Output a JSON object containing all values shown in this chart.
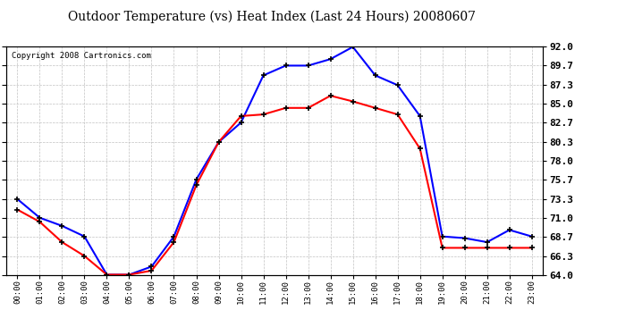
{
  "title": "Outdoor Temperature (vs) Heat Index (Last 24 Hours) 20080607",
  "copyright": "Copyright 2008 Cartronics.com",
  "x_labels": [
    "00:00",
    "01:00",
    "02:00",
    "03:00",
    "04:00",
    "05:00",
    "06:00",
    "07:00",
    "08:00",
    "09:00",
    "10:00",
    "11:00",
    "12:00",
    "13:00",
    "14:00",
    "15:00",
    "16:00",
    "17:00",
    "18:00",
    "19:00",
    "20:00",
    "21:00",
    "22:00",
    "23:00"
  ],
  "temp_blue": [
    73.3,
    71.0,
    70.0,
    68.7,
    64.0,
    64.0,
    65.0,
    68.7,
    75.7,
    80.3,
    82.7,
    88.5,
    89.7,
    89.7,
    90.5,
    92.0,
    88.5,
    87.3,
    83.5,
    68.7,
    68.5,
    68.0,
    69.5,
    68.7
  ],
  "heat_red": [
    72.0,
    70.5,
    68.0,
    66.3,
    64.0,
    64.0,
    64.5,
    68.0,
    75.0,
    80.3,
    83.5,
    83.7,
    84.5,
    84.5,
    86.0,
    85.3,
    84.5,
    83.7,
    79.5,
    67.3,
    67.3,
    67.3,
    67.3,
    67.3
  ],
  "ylim": [
    64.0,
    92.0
  ],
  "yticks": [
    64.0,
    66.3,
    68.7,
    71.0,
    73.3,
    75.7,
    78.0,
    80.3,
    82.7,
    85.0,
    87.3,
    89.7,
    92.0
  ],
  "blue_color": "#0000FF",
  "red_color": "#FF0000",
  "bg_color": "#FFFFFF",
  "grid_color": "#BBBBBB",
  "title_fontsize": 11,
  "copyright_fontsize": 7
}
